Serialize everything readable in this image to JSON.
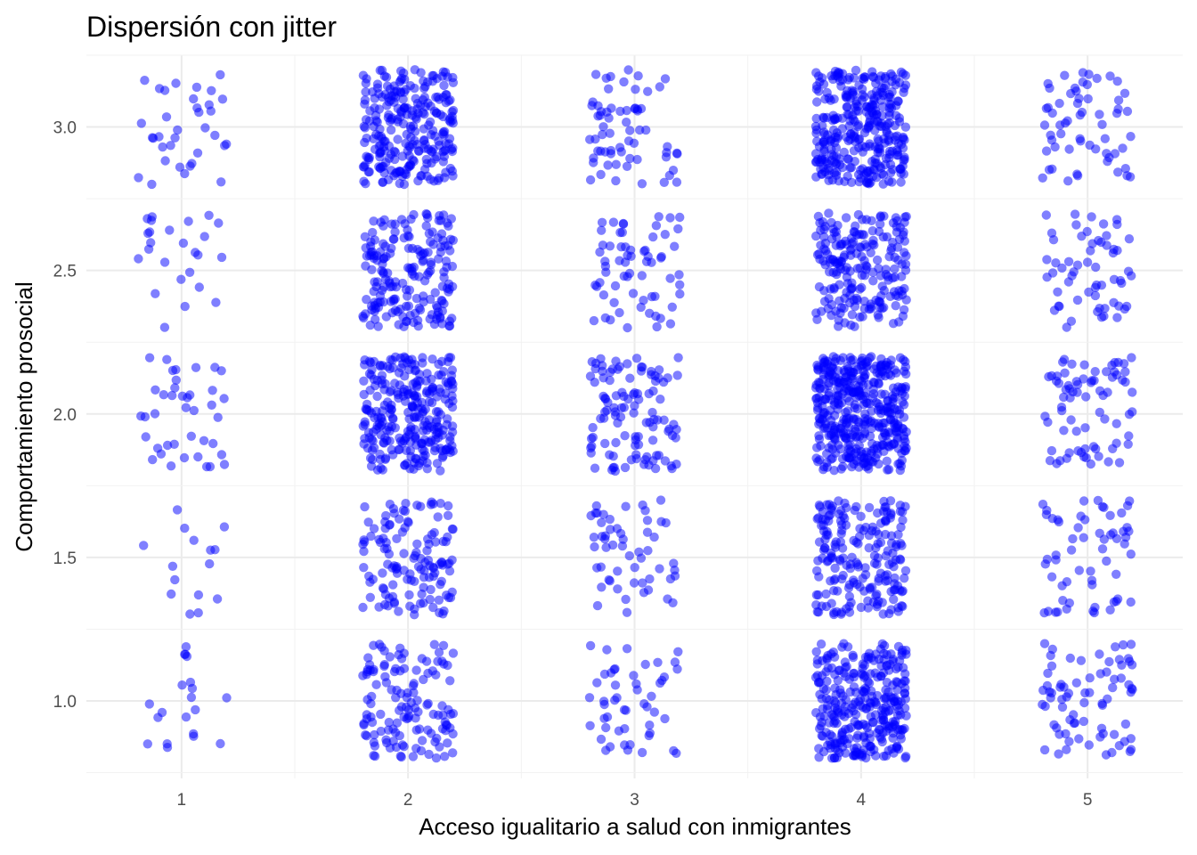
{
  "chart_data": {
    "type": "scatter",
    "title": "Dispersión con jitter",
    "xlabel": "Acceso igualitario a salud con inmigrantes",
    "ylabel": "Comportamiento prosocial",
    "x_ticks": [
      "1",
      "2",
      "3",
      "4",
      "5"
    ],
    "y_ticks": [
      "1.0",
      "1.5",
      "2.0",
      "2.5",
      "3.0"
    ],
    "xlim": [
      0.58,
      5.42
    ],
    "ylim": [
      0.73,
      3.25
    ],
    "jitter": {
      "x": 0.2,
      "y": 0.2
    },
    "grid": true,
    "point_color": "#0000ff",
    "point_alpha": 0.5,
    "groups": [
      {
        "x": 1,
        "y": 1.0,
        "n": 20
      },
      {
        "x": 1,
        "y": 1.5,
        "n": 15
      },
      {
        "x": 1,
        "y": 2.0,
        "n": 40
      },
      {
        "x": 1,
        "y": 2.5,
        "n": 25
      },
      {
        "x": 1,
        "y": 3.0,
        "n": 35
      },
      {
        "x": 2,
        "y": 1.0,
        "n": 130
      },
      {
        "x": 2,
        "y": 1.5,
        "n": 130
      },
      {
        "x": 2,
        "y": 2.0,
        "n": 280
      },
      {
        "x": 2,
        "y": 2.5,
        "n": 190
      },
      {
        "x": 2,
        "y": 3.0,
        "n": 260
      },
      {
        "x": 3,
        "y": 1.0,
        "n": 50
      },
      {
        "x": 3,
        "y": 1.5,
        "n": 55
      },
      {
        "x": 3,
        "y": 2.0,
        "n": 110
      },
      {
        "x": 3,
        "y": 2.5,
        "n": 65
      },
      {
        "x": 3,
        "y": 3.0,
        "n": 65
      },
      {
        "x": 4,
        "y": 1.0,
        "n": 310
      },
      {
        "x": 4,
        "y": 1.5,
        "n": 200
      },
      {
        "x": 4,
        "y": 2.0,
        "n": 420
      },
      {
        "x": 4,
        "y": 2.5,
        "n": 210
      },
      {
        "x": 4,
        "y": 3.0,
        "n": 330
      },
      {
        "x": 5,
        "y": 1.0,
        "n": 75
      },
      {
        "x": 5,
        "y": 1.5,
        "n": 60
      },
      {
        "x": 5,
        "y": 2.0,
        "n": 75
      },
      {
        "x": 5,
        "y": 2.5,
        "n": 60
      },
      {
        "x": 5,
        "y": 3.0,
        "n": 60
      }
    ]
  }
}
